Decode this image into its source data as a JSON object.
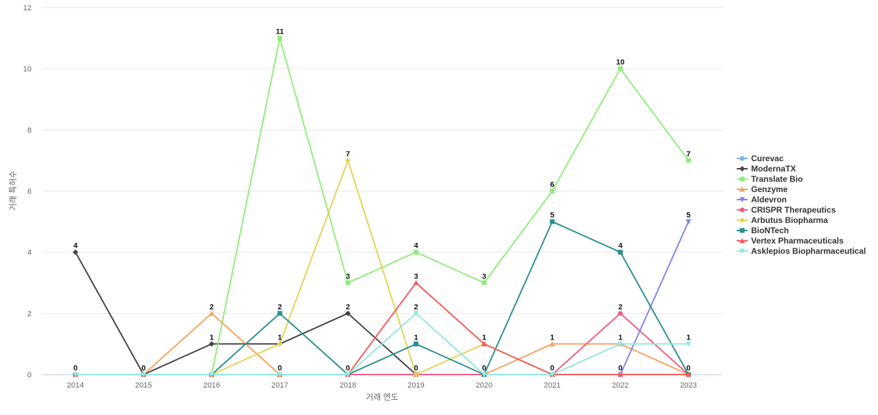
{
  "chart_data": {
    "type": "line",
    "title": "",
    "xlabel": "거래 연도",
    "ylabel": "거래 특허수",
    "ylim": [
      0,
      12
    ],
    "yticks": [
      0,
      2,
      4,
      6,
      8,
      10,
      12
    ],
    "grid": true,
    "legend_position": "right",
    "categories": [
      "2014",
      "2015",
      "2016",
      "2017",
      "2018",
      "2019",
      "2020",
      "2021",
      "2022",
      "2023"
    ],
    "series": [
      {
        "name": "Curevac",
        "color": "#7cb5ec",
        "marker": "circle",
        "values": [
          0,
          0,
          0,
          0,
          0,
          0,
          0,
          0,
          0,
          0
        ],
        "labels": [
          false,
          false,
          false,
          false,
          false,
          false,
          false,
          false,
          false,
          false
        ]
      },
      {
        "name": "ModernaTX",
        "color": "#434348",
        "marker": "diamond",
        "values": [
          4,
          0,
          1,
          1,
          2,
          0,
          0,
          0,
          0,
          0
        ],
        "labels": [
          true,
          true,
          true,
          true,
          true,
          false,
          false,
          false,
          false,
          false
        ]
      },
      {
        "name": "Translate Bio",
        "color": "#90ed7d",
        "marker": "square",
        "values": [
          0,
          0,
          0,
          11,
          3,
          4,
          3,
          6,
          10,
          7
        ],
        "labels": [
          false,
          false,
          false,
          true,
          true,
          true,
          true,
          true,
          true,
          true
        ]
      },
      {
        "name": "Genzyme",
        "color": "#f7a35c",
        "marker": "triangle",
        "values": [
          0,
          0,
          2,
          0,
          0,
          0,
          0,
          1,
          1,
          0
        ],
        "labels": [
          false,
          false,
          true,
          true,
          false,
          false,
          false,
          true,
          false,
          false
        ]
      },
      {
        "name": "Aldevron",
        "color": "#8085e9",
        "marker": "triangle-down",
        "values": [
          0,
          0,
          0,
          0,
          0,
          0,
          0,
          0,
          0,
          5
        ],
        "labels": [
          false,
          false,
          false,
          false,
          false,
          false,
          false,
          false,
          true,
          true
        ]
      },
      {
        "name": "CRISPR Therapeutics",
        "color": "#f15c80",
        "marker": "circle",
        "values": [
          0,
          0,
          0,
          0,
          0,
          0,
          0,
          0,
          2,
          0
        ],
        "labels": [
          false,
          false,
          false,
          false,
          false,
          false,
          false,
          false,
          true,
          false
        ]
      },
      {
        "name": "Arbutus Biopharma",
        "color": "#e4d354",
        "marker": "diamond",
        "values": [
          0,
          0,
          0,
          1,
          7,
          0,
          1,
          0,
          0,
          0
        ],
        "labels": [
          false,
          false,
          false,
          false,
          true,
          true,
          false,
          false,
          false,
          false
        ]
      },
      {
        "name": "BioNTech",
        "color": "#2b908f",
        "marker": "square",
        "values": [
          0,
          0,
          0,
          2,
          0,
          1,
          0,
          5,
          4,
          0
        ],
        "labels": [
          false,
          false,
          false,
          true,
          true,
          true,
          true,
          true,
          true,
          true
        ]
      },
      {
        "name": "Vertex Pharmaceuticals",
        "color": "#f45b5b",
        "marker": "triangle",
        "values": [
          0,
          0,
          0,
          0,
          0,
          3,
          1,
          0,
          0,
          0
        ],
        "labels": [
          false,
          false,
          false,
          false,
          false,
          true,
          true,
          true,
          false,
          false
        ]
      },
      {
        "name": "Asklepios Biopharmaceutical",
        "color": "#91e8e1",
        "marker": "triangle-down",
        "values": [
          0,
          0,
          0,
          0,
          0,
          2,
          0,
          0,
          1,
          1
        ],
        "labels": [
          true,
          false,
          false,
          false,
          false,
          true,
          false,
          false,
          true,
          true
        ]
      }
    ]
  }
}
